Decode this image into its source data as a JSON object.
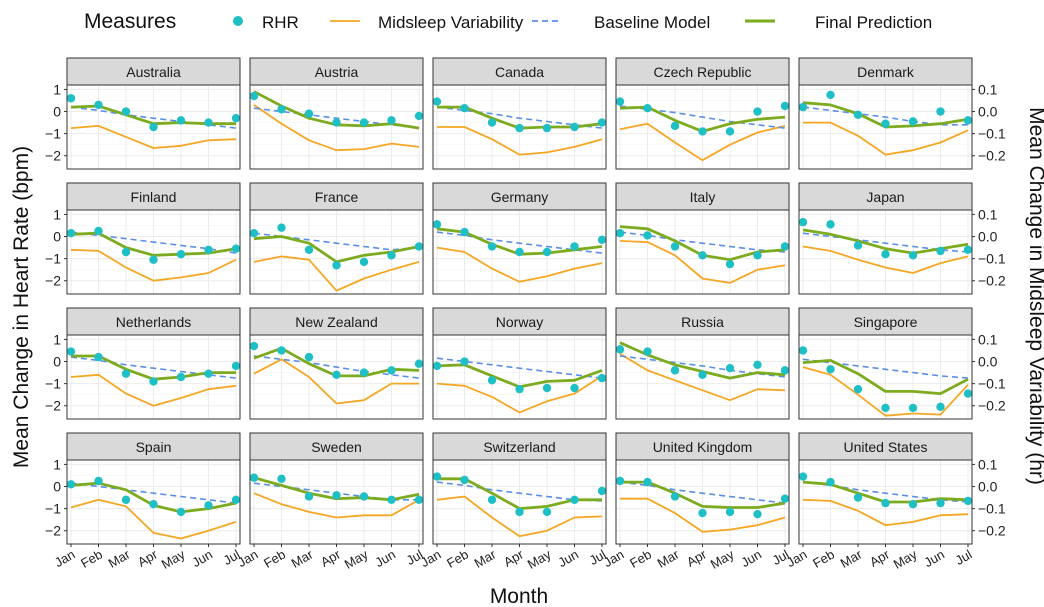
{
  "chart_data": {
    "type": "line",
    "layout": "facet_grid",
    "legend": {
      "title": "Measures",
      "placement": "top",
      "entries": [
        {
          "name": "RHR",
          "kind": "point",
          "color": "#1fbfc6"
        },
        {
          "name": "Midsleep Variability",
          "kind": "line",
          "color": "#f5a623"
        },
        {
          "name": "Baseline Model",
          "kind": "dashed-line",
          "color": "#5b8fe6"
        },
        {
          "name": "Final Prediction",
          "kind": "thick-line",
          "color": "#7cab1f"
        }
      ]
    },
    "xlabel": "Month",
    "ylabel_left": "Mean Change in Heart Rate (bpm)",
    "ylabel_right": "Mean Change in Midsleep Variability (hr)",
    "x": [
      "Jan",
      "Feb",
      "Mar",
      "Apr",
      "May",
      "Jun",
      "Jul"
    ],
    "ylim_left": [
      -2.6,
      1.2
    ],
    "yticks_left": [
      1,
      0,
      -1,
      -2
    ],
    "yticks_left_labels": [
      "1",
      "0",
      "−1",
      "−2"
    ],
    "yticks_right": [
      0.1,
      0.0,
      -0.1,
      -0.2
    ],
    "yticks_right_labels": [
      "0.1",
      "0.0",
      "−0.1",
      "−0.2"
    ],
    "right_axis_scale": "right = left / 10",
    "grid": true,
    "panels": [
      {
        "title": "Australia",
        "rhr": [
          0.6,
          0.3,
          0.0,
          -0.7,
          -0.4,
          -0.5,
          -0.3
        ],
        "midsleep": [
          -0.75,
          -0.65,
          -1.15,
          -1.65,
          -1.55,
          -1.3,
          -1.25
        ],
        "baseline": [
          0.2,
          0.05,
          -0.15,
          -0.3,
          -0.45,
          -0.6,
          -0.75
        ],
        "final": [
          0.2,
          0.25,
          -0.15,
          -0.55,
          -0.5,
          -0.55,
          -0.55
        ]
      },
      {
        "title": "Austria",
        "rhr": [
          0.7,
          0.1,
          -0.1,
          -0.5,
          -0.5,
          -0.4,
          -0.2
        ],
        "midsleep": [
          0.3,
          -0.55,
          -1.3,
          -1.75,
          -1.7,
          -1.45,
          -1.6
        ],
        "baseline": [
          0.15,
          0.0,
          -0.15,
          -0.3,
          -0.45,
          -0.6,
          -0.75
        ],
        "final": [
          0.9,
          0.25,
          -0.3,
          -0.6,
          -0.65,
          -0.55,
          -0.75
        ]
      },
      {
        "title": "Canada",
        "rhr": [
          0.45,
          0.15,
          -0.5,
          -0.75,
          -0.75,
          -0.7,
          -0.5
        ],
        "midsleep": [
          -0.7,
          -0.7,
          -1.25,
          -1.95,
          -1.85,
          -1.6,
          -1.25
        ],
        "baseline": [
          0.2,
          0.05,
          -0.1,
          -0.3,
          -0.45,
          -0.6,
          -0.75
        ],
        "final": [
          0.2,
          0.2,
          -0.3,
          -0.75,
          -0.7,
          -0.7,
          -0.55
        ]
      },
      {
        "title": "Czech Republic",
        "rhr": [
          0.45,
          0.15,
          -0.65,
          -0.9,
          -0.9,
          0.0,
          0.25
        ],
        "midsleep": [
          -0.8,
          -0.55,
          -1.4,
          -2.2,
          -1.5,
          -0.95,
          -0.65
        ],
        "baseline": [
          0.25,
          0.1,
          -0.05,
          -0.25,
          -0.45,
          -0.6,
          -0.75
        ],
        "final": [
          0.15,
          0.2,
          -0.4,
          -0.9,
          -0.55,
          -0.35,
          -0.25
        ]
      },
      {
        "title": "Denmark",
        "rhr": [
          0.2,
          0.75,
          -0.15,
          -0.55,
          -0.45,
          0.0,
          -0.4
        ],
        "midsleep": [
          -0.5,
          -0.5,
          -1.1,
          -1.95,
          -1.75,
          -1.4,
          -0.85
        ],
        "baseline": [
          0.2,
          0.05,
          -0.1,
          -0.25,
          -0.45,
          -0.6,
          -0.6
        ],
        "final": [
          0.4,
          0.3,
          -0.1,
          -0.7,
          -0.65,
          -0.55,
          -0.35
        ]
      },
      {
        "title": "Finland",
        "rhr": [
          0.15,
          0.25,
          -0.7,
          -1.05,
          -0.8,
          -0.6,
          -0.55
        ],
        "midsleep": [
          -0.6,
          -0.65,
          -1.4,
          -2.0,
          -1.85,
          -1.65,
          -1.05
        ],
        "baseline": [
          0.2,
          0.05,
          -0.1,
          -0.25,
          -0.4,
          -0.55,
          -0.75
        ],
        "final": [
          0.1,
          0.15,
          -0.5,
          -0.85,
          -0.8,
          -0.75,
          -0.55
        ]
      },
      {
        "title": "France",
        "rhr": [
          0.15,
          0.4,
          -0.6,
          -1.3,
          -1.15,
          -0.85,
          -0.45
        ],
        "midsleep": [
          -1.15,
          -0.9,
          -1.05,
          -2.45,
          -1.9,
          -1.5,
          -1.15
        ],
        "baseline": [
          0.15,
          0.0,
          -0.15,
          -0.3,
          -0.45,
          -0.6,
          -0.5
        ],
        "final": [
          -0.1,
          0.0,
          -0.3,
          -1.15,
          -0.85,
          -0.7,
          -0.45
        ]
      },
      {
        "title": "Germany",
        "rhr": [
          0.55,
          0.2,
          -0.45,
          -0.7,
          -0.7,
          -0.45,
          -0.15
        ],
        "midsleep": [
          -0.5,
          -0.7,
          -1.45,
          -2.05,
          -1.8,
          -1.45,
          -1.2
        ],
        "baseline": [
          0.2,
          0.05,
          -0.15,
          -0.3,
          -0.45,
          -0.6,
          -0.75
        ],
        "final": [
          0.35,
          0.2,
          -0.35,
          -0.8,
          -0.75,
          -0.6,
          -0.45
        ]
      },
      {
        "title": "Italy",
        "rhr": [
          0.15,
          0.05,
          -0.45,
          -0.85,
          -1.25,
          -0.85,
          -0.45
        ],
        "midsleep": [
          -0.2,
          -0.25,
          -0.85,
          -1.9,
          -2.1,
          -1.5,
          -1.3
        ],
        "baseline": [
          0.2,
          0.05,
          -0.15,
          -0.3,
          -0.45,
          -0.6,
          -0.7
        ],
        "final": [
          0.45,
          0.35,
          -0.2,
          -0.85,
          -1.05,
          -0.7,
          -0.6
        ]
      },
      {
        "title": "Japan",
        "rhr": [
          0.65,
          0.55,
          -0.4,
          -0.8,
          -0.85,
          -0.65,
          -0.6
        ],
        "midsleep": [
          -0.45,
          -0.65,
          -1.05,
          -1.4,
          -1.65,
          -1.2,
          -0.9
        ],
        "baseline": [
          0.15,
          0.0,
          -0.15,
          -0.3,
          -0.45,
          -0.6,
          -0.7
        ],
        "final": [
          0.3,
          0.1,
          -0.2,
          -0.55,
          -0.75,
          -0.55,
          -0.35
        ]
      },
      {
        "title": "Netherlands",
        "rhr": [
          0.45,
          0.2,
          -0.55,
          -0.9,
          -0.7,
          -0.55,
          -0.2
        ],
        "midsleep": [
          -0.7,
          -0.6,
          -1.45,
          -2.0,
          -1.65,
          -1.25,
          -1.1
        ],
        "baseline": [
          0.2,
          0.05,
          -0.15,
          -0.3,
          -0.45,
          -0.6,
          -0.75
        ],
        "final": [
          0.25,
          0.25,
          -0.35,
          -0.8,
          -0.7,
          -0.5,
          -0.5
        ]
      },
      {
        "title": "New Zealand",
        "rhr": [
          0.7,
          0.5,
          0.2,
          -0.6,
          -0.5,
          -0.4,
          -0.1
        ],
        "midsleep": [
          -0.55,
          0.1,
          -0.7,
          -1.9,
          -1.75,
          -1.0,
          -1.0
        ],
        "baseline": [
          0.25,
          0.1,
          -0.05,
          -0.25,
          -0.45,
          -0.6,
          -0.75
        ],
        "final": [
          0.15,
          0.6,
          -0.1,
          -0.65,
          -0.65,
          -0.35,
          -0.4
        ]
      },
      {
        "title": "Norway",
        "rhr": [
          -0.2,
          0.0,
          -0.85,
          -1.25,
          -1.2,
          -1.2,
          -0.75
        ],
        "midsleep": [
          -1.0,
          -1.1,
          -1.6,
          -2.3,
          -1.8,
          -1.45,
          -0.65
        ],
        "baseline": [
          0.15,
          0.0,
          -0.15,
          -0.3,
          -0.45,
          -0.6,
          -0.75
        ],
        "final": [
          -0.2,
          -0.15,
          -0.65,
          -1.15,
          -0.9,
          -0.85,
          -0.4
        ]
      },
      {
        "title": "Russia",
        "rhr": [
          0.55,
          0.45,
          -0.4,
          -0.6,
          -0.3,
          -0.15,
          -0.4
        ],
        "midsleep": [
          0.35,
          -0.4,
          -0.85,
          -1.3,
          -1.75,
          -1.25,
          -1.3
        ],
        "baseline": [
          0.25,
          0.1,
          -0.05,
          -0.2,
          -0.4,
          -0.55,
          -0.7
        ],
        "final": [
          0.85,
          0.3,
          -0.15,
          -0.45,
          -0.75,
          -0.5,
          -0.6
        ]
      },
      {
        "title": "Singapore",
        "rhr": [
          0.5,
          -0.35,
          -1.25,
          -2.1,
          -2.1,
          -2.05,
          -1.45
        ],
        "midsleep": [
          -0.25,
          -0.6,
          -1.5,
          -2.45,
          -2.35,
          -2.4,
          -1.05
        ],
        "baseline": [
          0.1,
          -0.05,
          -0.2,
          -0.35,
          -0.5,
          -0.65,
          -0.75
        ],
        "final": [
          -0.05,
          0.05,
          -0.55,
          -1.35,
          -1.35,
          -1.45,
          -0.8
        ]
      },
      {
        "title": "Spain",
        "rhr": [
          0.1,
          0.25,
          -0.6,
          -0.8,
          -1.15,
          -0.85,
          -0.6
        ],
        "midsleep": [
          -0.95,
          -0.6,
          -0.9,
          -2.1,
          -2.35,
          -2.0,
          -1.6
        ],
        "baseline": [
          0.15,
          0.0,
          -0.15,
          -0.3,
          -0.45,
          -0.6,
          -0.75
        ],
        "final": [
          0.05,
          0.15,
          -0.15,
          -0.85,
          -1.15,
          -1.0,
          -0.75
        ]
      },
      {
        "title": "Sweden",
        "rhr": [
          0.4,
          0.35,
          -0.45,
          -0.4,
          -0.45,
          -0.6,
          -0.6
        ],
        "midsleep": [
          -0.3,
          -0.8,
          -1.15,
          -1.4,
          -1.3,
          -1.3,
          -0.6
        ],
        "baseline": [
          0.15,
          0.0,
          -0.15,
          -0.3,
          -0.45,
          -0.6,
          -0.6
        ],
        "final": [
          0.4,
          0.05,
          -0.3,
          -0.55,
          -0.5,
          -0.6,
          -0.35
        ]
      },
      {
        "title": "Switzerland",
        "rhr": [
          0.45,
          0.3,
          -0.6,
          -1.15,
          -1.15,
          -0.6,
          -0.2
        ],
        "midsleep": [
          -0.6,
          -0.45,
          -1.4,
          -2.25,
          -2.0,
          -1.4,
          -1.35
        ],
        "baseline": [
          0.2,
          0.05,
          -0.15,
          -0.3,
          -0.45,
          -0.6,
          -0.65
        ],
        "final": [
          0.35,
          0.35,
          -0.3,
          -1.0,
          -0.9,
          -0.6,
          -0.6
        ]
      },
      {
        "title": "United Kingdom",
        "rhr": [
          0.25,
          0.2,
          -0.45,
          -1.2,
          -1.15,
          -1.25,
          -0.55
        ],
        "midsleep": [
          -0.55,
          -0.55,
          -1.2,
          -2.05,
          -1.95,
          -1.75,
          -1.4
        ],
        "baseline": [
          0.2,
          0.05,
          -0.15,
          -0.3,
          -0.45,
          -0.6,
          -0.75
        ],
        "final": [
          0.2,
          0.2,
          -0.3,
          -0.9,
          -0.95,
          -0.95,
          -0.75
        ]
      },
      {
        "title": "United States",
        "rhr": [
          0.45,
          0.2,
          -0.5,
          -0.75,
          -0.8,
          -0.75,
          -0.65
        ],
        "midsleep": [
          -0.6,
          -0.65,
          -1.1,
          -1.75,
          -1.6,
          -1.3,
          -1.25
        ],
        "baseline": [
          0.2,
          0.05,
          -0.15,
          -0.3,
          -0.45,
          -0.6,
          -0.7
        ],
        "final": [
          0.2,
          0.1,
          -0.3,
          -0.7,
          -0.7,
          -0.55,
          -0.6
        ]
      }
    ]
  }
}
